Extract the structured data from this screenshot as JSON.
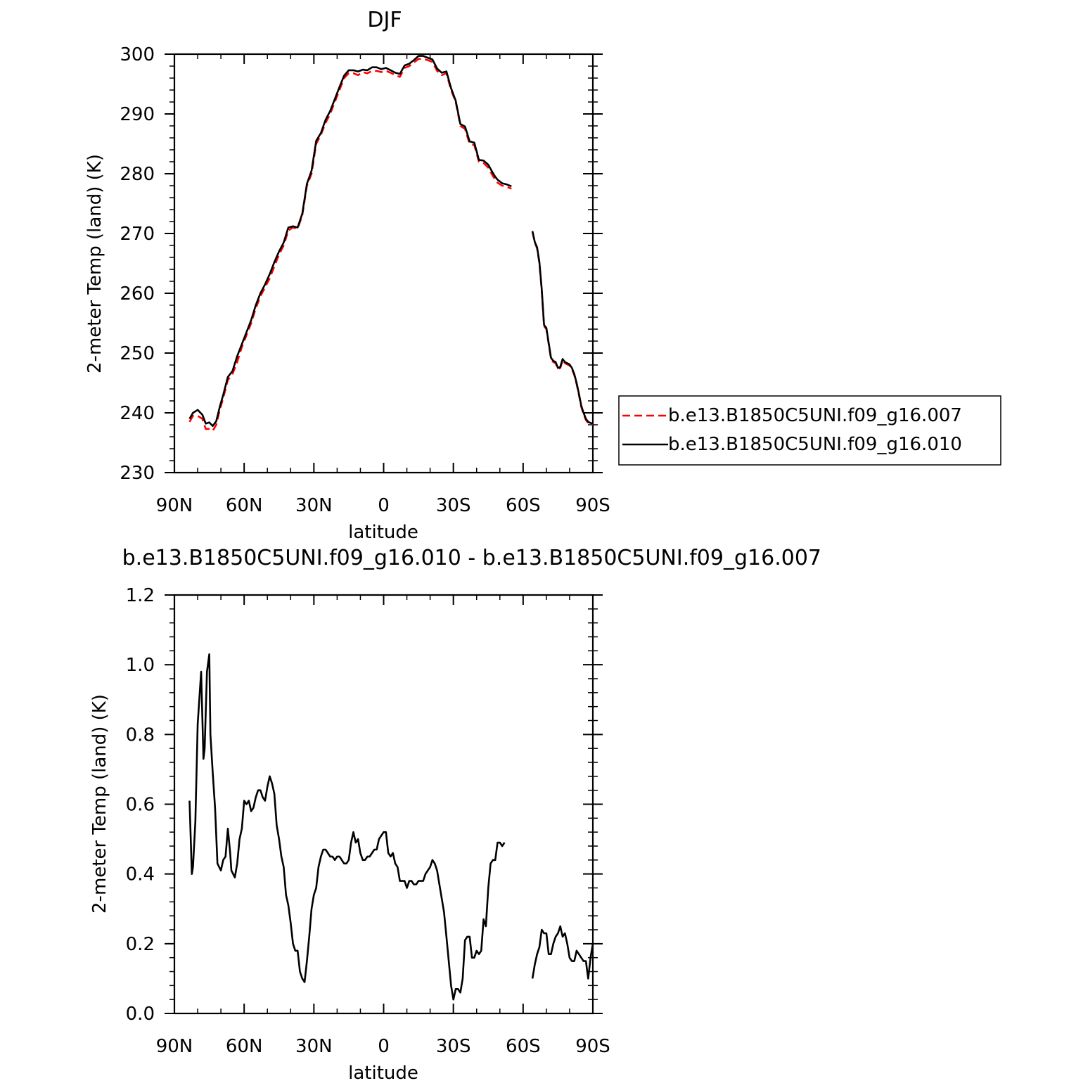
{
  "chart_data": [
    {
      "type": "line",
      "title": "DJF",
      "xlabel": "latitude",
      "ylabel": "2-meter Temp (land) (K)",
      "x_ticks": [
        {
          "value": 90,
          "label": "90N"
        },
        {
          "value": 60,
          "label": "60N"
        },
        {
          "value": 30,
          "label": "30N"
        },
        {
          "value": 0,
          "label": "0"
        },
        {
          "value": -30,
          "label": "30S"
        },
        {
          "value": -60,
          "label": "60S"
        },
        {
          "value": -90,
          "label": "90S"
        }
      ],
      "xlim": [
        90,
        -90
      ],
      "ylim": [
        230,
        300
      ],
      "y_ticks": [
        230,
        240,
        250,
        260,
        270,
        280,
        290,
        300
      ],
      "grid": false,
      "legend_position": "right",
      "series": [
        {
          "name": "b.e13.B1850C5UNI.f09_g16.007",
          "color": "#ff0000",
          "dash": "dashed",
          "segments": [
            {
              "lat": [
                83.5,
                82,
                80,
                78,
                76.5,
                75,
                73.5,
                72,
                70.5,
                69,
                67,
                65,
                63,
                61,
                59,
                57,
                55,
                53,
                51,
                49,
                47,
                45,
                43,
                41,
                39,
                37,
                35,
                33,
                31,
                29,
                27,
                25,
                23,
                21,
                19,
                17,
                15,
                13,
                11,
                9,
                7,
                5,
                3,
                1,
                -1,
                -3,
                -5,
                -7,
                -9,
                -11,
                -13,
                -15,
                -17,
                -19,
                -21,
                -23,
                -25,
                -27,
                -29,
                -31,
                -33,
                -35,
                -37,
                -39,
                -41,
                -43,
                -45,
                -47,
                -48,
                -49,
                -51,
                -53,
                -55
              ],
              "temp": [
                238.5,
                239.5,
                239.5,
                239,
                237.3,
                237.3,
                237,
                238,
                240.5,
                242.5,
                245.5,
                246.5,
                248.5,
                251,
                253,
                255,
                257.5,
                259.5,
                261,
                262.5,
                264.5,
                266.5,
                268,
                270.5,
                271,
                270.8,
                273,
                278,
                280,
                285,
                286.5,
                288.5,
                290,
                292,
                294,
                296,
                296.8,
                296.8,
                296.5,
                297,
                296.8,
                297.2,
                297.2,
                297,
                297.2,
                296.9,
                296.5,
                296.2,
                297.7,
                298,
                298.6,
                299.2,
                299.2,
                299,
                298.7,
                297.2,
                296.5,
                296.8,
                294,
                292,
                288,
                287.5,
                285,
                284.8,
                282,
                281.8,
                281,
                279.6,
                279,
                278.5,
                278,
                277.8,
                277.5
              ]
            },
            {
              "lat": [
                -64,
                -65,
                -66,
                -67,
                -68,
                -69,
                -70,
                -71,
                -72,
                -73,
                -74,
                -75,
                -76,
                -77,
                -78,
                -80,
                -81,
                -82,
                -83,
                -84,
                -85,
                -86,
                -87,
                -88,
                -89,
                -90
              ],
              "temp": [
                270.3,
                268.5,
                267.5,
                265,
                260.5,
                254.5,
                254,
                251.5,
                249,
                248.5,
                248.3,
                247.3,
                247.5,
                248.8,
                248.3,
                247.9,
                247.3,
                246.3,
                244.8,
                243,
                241,
                239.8,
                238.8,
                238.3,
                238.1,
                238
              ]
            }
          ]
        },
        {
          "name": "b.e13.B1850C5UNI.f09_g16.010",
          "color": "#000000",
          "dash": "solid",
          "segments": [
            {
              "lat": [
                83.5,
                82,
                80,
                78,
                76.5,
                75,
                73.5,
                72,
                70.5,
                69,
                67,
                65,
                63,
                61,
                59,
                57,
                55,
                53,
                51,
                49,
                47,
                45,
                43,
                41,
                39,
                37,
                35,
                33,
                31,
                29,
                27,
                25,
                23,
                21,
                19,
                17,
                15,
                13,
                11,
                9,
                7,
                5,
                3,
                1,
                -1,
                -3,
                -5,
                -7,
                -9,
                -11,
                -13,
                -15,
                -17,
                -19,
                -21,
                -23,
                -25,
                -27,
                -29,
                -31,
                -33,
                -35,
                -37,
                -39,
                -41,
                -43,
                -45,
                -47,
                -48,
                -49,
                -51,
                -53,
                -55
              ],
              "temp": [
                239,
                240,
                240.5,
                239.7,
                238.2,
                238.4,
                237.8,
                238.6,
                241,
                243,
                246,
                247,
                249.5,
                251.5,
                253.5,
                255.5,
                258,
                260,
                261.5,
                263.2,
                265.2,
                267,
                268.5,
                271,
                271.2,
                271,
                273.3,
                278.3,
                280.5,
                285.5,
                286.8,
                289,
                290.5,
                292.5,
                294.5,
                296.4,
                297.3,
                297.3,
                297.1,
                297.4,
                297.3,
                297.8,
                297.8,
                297.5,
                297.7,
                297.3,
                296.9,
                296.7,
                298.1,
                298.4,
                299,
                299.7,
                299.7,
                299.4,
                299.1,
                297.6,
                296.9,
                297.1,
                294.3,
                292.2,
                288.3,
                287.9,
                285.4,
                285.2,
                282.3,
                282.2,
                281.5,
                280.1,
                279.5,
                279,
                278.4,
                278.2,
                277.9
              ]
            },
            {
              "lat": [
                -64,
                -65,
                -66,
                -67,
                -68,
                -69,
                -70,
                -71,
                -72,
                -73,
                -74,
                -75,
                -76,
                -77,
                -78,
                -80,
                -81,
                -82,
                -83,
                -84,
                -85,
                -86,
                -87,
                -88,
                -89,
                -90
              ],
              "temp": [
                270.4,
                268.6,
                267.7,
                265.2,
                260.7,
                254.7,
                254.2,
                251.7,
                249.2,
                248.7,
                248.5,
                247.5,
                247.7,
                249,
                248.5,
                248.1,
                247.5,
                246.5,
                245,
                243.2,
                241.2,
                240,
                239,
                238.5,
                238.3,
                238.2
              ]
            }
          ]
        }
      ]
    },
    {
      "type": "line",
      "title": "b.e13.B1850C5UNI.f09_g16.010 - b.e13.B1850C5UNI.f09_g16.007",
      "xlabel": "latitude",
      "ylabel": "2-meter Temp (land) (K)",
      "x_ticks": [
        {
          "value": 90,
          "label": "90N"
        },
        {
          "value": 60,
          "label": "60N"
        },
        {
          "value": 30,
          "label": "30N"
        },
        {
          "value": 0,
          "label": "0"
        },
        {
          "value": -30,
          "label": "30S"
        },
        {
          "value": -60,
          "label": "60S"
        },
        {
          "value": -90,
          "label": "90S"
        }
      ],
      "xlim": [
        90,
        -90
      ],
      "ylim": [
        0.0,
        1.2
      ],
      "y_ticks": [
        0.0,
        0.2,
        0.4,
        0.6,
        0.8,
        1.0,
        1.2
      ],
      "grid": false,
      "series": [
        {
          "color": "#000000",
          "dash": "solid",
          "segments": [
            {
              "lat": [
                83.5,
                82.5,
                82,
                81,
                80,
                78.5,
                77.5,
                77,
                76,
                75,
                74.5,
                73.5,
                72.5,
                71.5,
                70,
                69,
                68,
                67,
                66,
                65.5,
                64,
                63,
                62,
                61,
                60,
                59,
                58,
                57,
                56,
                55,
                54,
                53,
                52,
                51,
                50,
                49,
                48,
                47,
                46,
                45,
                44,
                43,
                42,
                41,
                40,
                39,
                38,
                37,
                36,
                35,
                34,
                33,
                32,
                31,
                30,
                29,
                28,
                27,
                26,
                25,
                24,
                23,
                22,
                21,
                20,
                19,
                18,
                17,
                16,
                15,
                14,
                13,
                12,
                11,
                10,
                9,
                8,
                7,
                6,
                5,
                4,
                3,
                2,
                1,
                0,
                -1,
                -2,
                -3,
                -4,
                -5,
                -6,
                -7,
                -8,
                -9,
                -10,
                -11,
                -12,
                -13,
                -14,
                -15,
                -16,
                -17,
                -18,
                -19,
                -20,
                -21,
                -22,
                -23,
                -24,
                -25,
                -26,
                -27,
                -28,
                -29,
                -30,
                -31,
                -32,
                -33,
                -34,
                -35,
                -36,
                -37,
                -38,
                -39,
                -40,
                -41,
                -42,
                -43,
                -44,
                -45,
                -46,
                -47,
                -48,
                -49,
                -50,
                -51,
                -52,
                -53,
                -54,
                -55
              ],
              "diff": [
                0.61,
                0.4,
                0.42,
                0.55,
                0.83,
                0.98,
                0.73,
                0.76,
                0.98,
                1.03,
                0.8,
                0.69,
                0.59,
                0.43,
                0.41,
                0.44,
                0.45,
                0.53,
                0.46,
                0.41,
                0.39,
                0.43,
                0.5,
                0.53,
                0.61,
                0.6,
                0.61,
                0.58,
                0.59,
                0.62,
                0.64,
                0.64,
                0.62,
                0.61,
                0.65,
                0.68,
                0.66,
                0.63,
                0.54,
                0.5,
                0.45,
                0.42,
                0.34,
                0.31,
                0.26,
                0.2,
                0.18,
                0.18,
                0.12,
                0.1,
                0.09,
                0.15,
                0.22,
                0.3,
                0.34,
                0.36,
                0.42,
                0.45,
                0.47,
                0.47,
                0.46,
                0.45,
                0.45,
                0.44,
                0.45,
                0.45,
                0.44,
                0.43,
                0.43,
                0.44,
                0.49,
                0.52,
                0.49,
                0.5,
                0.46,
                0.44,
                0.44,
                0.45,
                0.45,
                0.46,
                0.47,
                0.47,
                0.5,
                0.51,
                0.52,
                0.52,
                0.46,
                0.45,
                0.46,
                0.43,
                0.42,
                0.38,
                0.38,
                0.38,
                0.36,
                0.38,
                0.38,
                0.37,
                0.37,
                0.38,
                0.38,
                0.38,
                0.4,
                0.41,
                0.42,
                0.44,
                0.43,
                0.41,
                0.37,
                0.33,
                0.29,
                0.22,
                0.15,
                0.08,
                0.04,
                0.07,
                0.07,
                0.06,
                0.1,
                0.21,
                0.22,
                0.22,
                0.16,
                0.16,
                0.18,
                0.17,
                0.18,
                0.27,
                0.25,
                0.36,
                0.43,
                0.44,
                0.44,
                0.49,
                0.49,
                0.48,
                0.49
              ]
            },
            {
              "lat": [
                -64,
                -65,
                -66,
                -67,
                -68,
                -69,
                -70,
                -71,
                -72,
                -73,
                -74,
                -75,
                -76,
                -77,
                -78,
                -79,
                -80,
                -81,
                -82,
                -83,
                -84,
                -85,
                -86,
                -87,
                -88,
                -89,
                -90
              ],
              "diff": [
                0.1,
                0.14,
                0.17,
                0.19,
                0.24,
                0.23,
                0.23,
                0.17,
                0.17,
                0.2,
                0.22,
                0.23,
                0.25,
                0.22,
                0.23,
                0.2,
                0.16,
                0.15,
                0.15,
                0.18,
                0.17,
                0.16,
                0.15,
                0.15,
                0.1,
                0.16,
                0.2
              ]
            }
          ]
        }
      ]
    }
  ]
}
